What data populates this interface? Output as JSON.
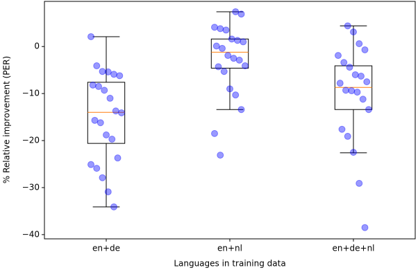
{
  "chart_data": {
    "type": "box",
    "xlabel": "Languages in training data",
    "ylabel": "% Relative improvement (PER)",
    "categories": [
      "en+de",
      "en+nl",
      "en+de+nl"
    ],
    "boxes": [
      {
        "whislo": -34.1,
        "q1": -20.6,
        "med": -14.0,
        "q3": -7.6,
        "whishi": 2.1
      },
      {
        "whislo": -13.4,
        "q1": -4.6,
        "med": -1.2,
        "q3": 1.6,
        "whishi": 7.4
      },
      {
        "whislo": -22.6,
        "q1": -13.4,
        "med": -8.7,
        "q3": -4.1,
        "whishi": 4.4
      }
    ],
    "points": [
      [
        2.1,
        -4.1,
        -5.3,
        -5.4,
        -5.9,
        -6.2,
        -8.2,
        -8.5,
        -9.3,
        -11.0,
        -13.7,
        -14.1,
        -15.7,
        -16.2,
        -18.8,
        -19.7,
        -23.7,
        -25.1,
        -25.9,
        -27.9,
        -30.9,
        -34.1
      ],
      [
        7.4,
        6.9,
        4.1,
        3.8,
        3.5,
        1.6,
        1.3,
        1.0,
        0.1,
        -0.4,
        -1.9,
        -2.5,
        -2.9,
        -4.1,
        -4.3,
        -5.3,
        -9.0,
        -10.3,
        -13.4,
        -18.5,
        -23.1
      ],
      [
        4.4,
        3.1,
        0.6,
        -0.7,
        -1.9,
        -3.4,
        -4.4,
        -6.0,
        -6.3,
        -7.5,
        -7.8,
        -9.3,
        -9.4,
        -9.7,
        -11.2,
        -13.4,
        -17.6,
        -19.1,
        -22.5,
        -29.1,
        -38.5
      ]
    ],
    "box_color": "#000000",
    "median_color": "#ff7f0e",
    "point_color": "#0000ff",
    "ylim": [
      -40.9,
      9.6
    ],
    "yticks": [
      {
        "value": -40,
        "label": "−40"
      },
      {
        "value": -30,
        "label": "−30"
      },
      {
        "value": -20,
        "label": "−20"
      },
      {
        "value": -10,
        "label": "−10"
      },
      0
    ]
  }
}
